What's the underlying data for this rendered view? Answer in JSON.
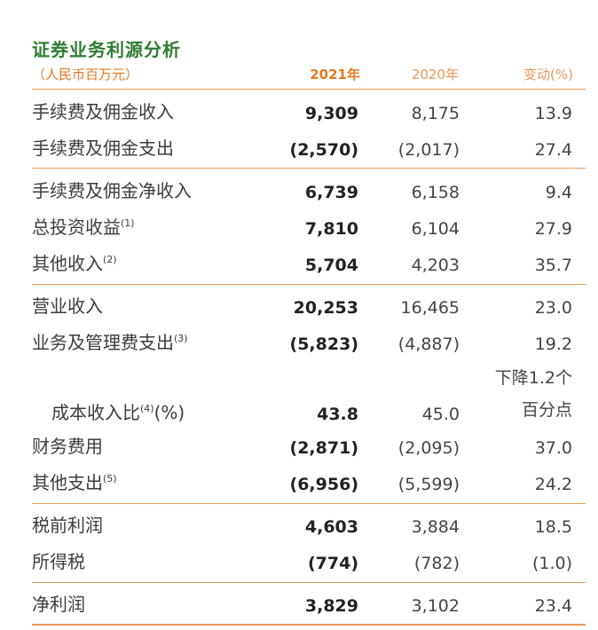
{
  "title": "证券业务利源分析",
  "header": {
    "unit": "（人民币百万元）",
    "col1": "2021年",
    "col2": "2020年",
    "col3": "变动(%)"
  },
  "rows": [
    {
      "label": "手续费及佣金收入",
      "note": "",
      "v2021": "9,309",
      "v2020": "8,175",
      "change": "13.9"
    },
    {
      "label": "手续费及佣金支出",
      "note": "",
      "v2021": "(2,570)",
      "v2020": "(2,017)",
      "change": "27.4"
    },
    {
      "label": "手续费及佣金净收入",
      "note": "",
      "v2021": "6,739",
      "v2020": "6,158",
      "change": "9.4"
    },
    {
      "label": "总投资收益",
      "note": "(1)",
      "v2021": "7,810",
      "v2020": "6,104",
      "change": "27.9"
    },
    {
      "label": "其他收入",
      "note": "(2)",
      "v2021": "5,704",
      "v2020": "4,203",
      "change": "35.7"
    },
    {
      "label": "营业收入",
      "note": "",
      "v2021": "20,253",
      "v2020": "16,465",
      "change": "23.0"
    },
    {
      "label": "业务及管理费支出",
      "note": "(3)",
      "v2021": "(5,823)",
      "v2020": "(4,887)",
      "change": "19.2"
    },
    {
      "label": "成本收入比",
      "note": "(4)",
      "suffix": "(%)",
      "v2021": "43.8",
      "v2020": "45.0",
      "change_line1": "下降1.2个",
      "change_line2": "百分点"
    },
    {
      "label": "财务费用",
      "note": "",
      "v2021": "(2,871)",
      "v2020": "(2,095)",
      "change": "37.0"
    },
    {
      "label": "其他支出",
      "note": "(5)",
      "v2021": "(6,956)",
      "v2020": "(5,599)",
      "change": "24.2"
    },
    {
      "label": "税前利润",
      "note": "",
      "v2021": "4,603",
      "v2020": "3,884",
      "change": "18.5"
    },
    {
      "label": "所得税",
      "note": "",
      "v2021": "(774)",
      "v2020": "(782)",
      "change": "(1.0)"
    },
    {
      "label": "净利润",
      "note": "",
      "v2021": "3,829",
      "v2020": "3,102",
      "change": "23.4"
    }
  ],
  "colors": {
    "title": "#2e7d32",
    "accent": "#e87722",
    "rule": "#e8995a"
  }
}
